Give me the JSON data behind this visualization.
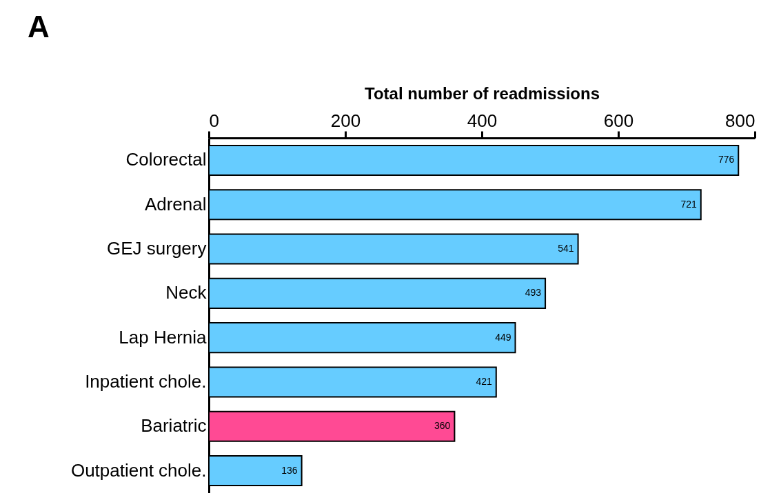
{
  "chart_data": {
    "type": "bar",
    "orientation": "horizontal",
    "xlabel": "Total number of readmissions",
    "annotations": [
      "A"
    ],
    "categories": [
      "Colorectal",
      "Adrenal",
      "GEJ surgery",
      "Neck",
      "Lap Hernia",
      "Inpatient chole.",
      "Bariatric",
      "Outpatient chole."
    ],
    "values": [
      776,
      721,
      541,
      493,
      449,
      421,
      360,
      136
    ],
    "colors": [
      "#66ccff",
      "#66ccff",
      "#66ccff",
      "#66ccff",
      "#66ccff",
      "#66ccff",
      "#ff4a94",
      "#66ccff"
    ],
    "xlim": [
      0,
      800
    ],
    "xticks": [
      0,
      200,
      400,
      600,
      800
    ],
    "data_labels": true,
    "grid": false,
    "legend": false
  }
}
